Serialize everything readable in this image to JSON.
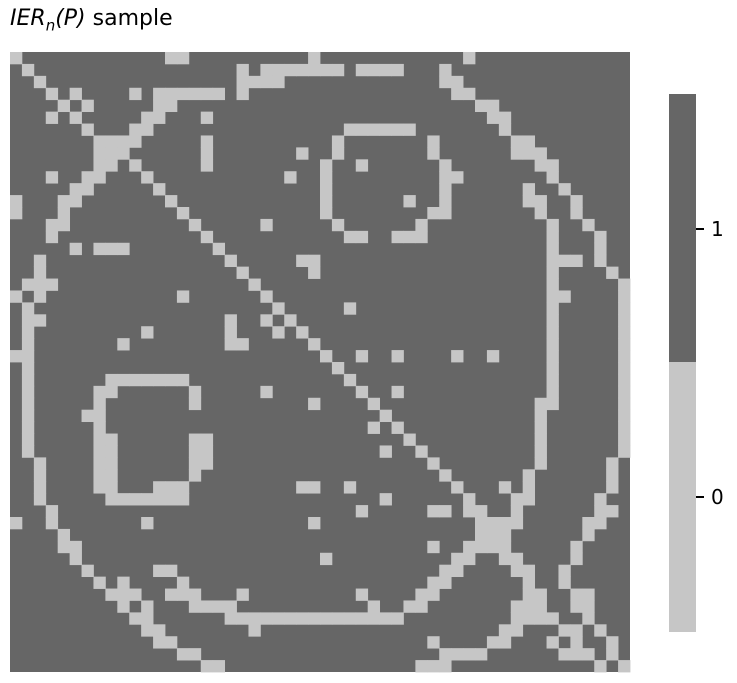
{
  "title": {
    "prefix": "IER",
    "subscript": "n",
    "suffix": "(P) sample"
  },
  "colors": {
    "one": "#666666",
    "zero": "#c6c6c6"
  },
  "chart_data": {
    "type": "heatmap",
    "title": "IER_n(P) sample",
    "size": 52,
    "values_rule": "1 everywhere except listed zero cells",
    "zero_cells_rc": [
      [
        0,
        0
      ],
      [
        0,
        13
      ],
      [
        0,
        14
      ],
      [
        0,
        25
      ],
      [
        0,
        38
      ],
      [
        1,
        1
      ],
      [
        1,
        19
      ],
      [
        1,
        21
      ],
      [
        1,
        22
      ],
      [
        1,
        23
      ],
      [
        1,
        24
      ],
      [
        1,
        25
      ],
      [
        1,
        26
      ],
      [
        1,
        27
      ],
      [
        1,
        29
      ],
      [
        1,
        30
      ],
      [
        1,
        31
      ],
      [
        1,
        32
      ],
      [
        1,
        36
      ],
      [
        2,
        2
      ],
      [
        2,
        19
      ],
      [
        2,
        20
      ],
      [
        2,
        21
      ],
      [
        2,
        22
      ],
      [
        2,
        36
      ],
      [
        2,
        37
      ],
      [
        3,
        3
      ],
      [
        3,
        5
      ],
      [
        3,
        10
      ],
      [
        3,
        12
      ],
      [
        3,
        13
      ],
      [
        3,
        14
      ],
      [
        3,
        15
      ],
      [
        3,
        16
      ],
      [
        3,
        17
      ],
      [
        3,
        19
      ],
      [
        3,
        37
      ],
      [
        3,
        38
      ],
      [
        4,
        4
      ],
      [
        4,
        6
      ],
      [
        4,
        12
      ],
      [
        4,
        13
      ],
      [
        4,
        39
      ],
      [
        4,
        40
      ],
      [
        5,
        3
      ],
      [
        5,
        5
      ],
      [
        5,
        11
      ],
      [
        5,
        12
      ],
      [
        5,
        16
      ],
      [
        5,
        40
      ],
      [
        5,
        41
      ],
      [
        6,
        6
      ],
      [
        6,
        10
      ],
      [
        6,
        11
      ],
      [
        6,
        28
      ],
      [
        6,
        29
      ],
      [
        6,
        30
      ],
      [
        6,
        31
      ],
      [
        6,
        32
      ],
      [
        6,
        33
      ],
      [
        6,
        41
      ],
      [
        7,
        7
      ],
      [
        7,
        8
      ],
      [
        7,
        9
      ],
      [
        7,
        10
      ],
      [
        7,
        16
      ],
      [
        7,
        27
      ],
      [
        7,
        35
      ],
      [
        7,
        42
      ],
      [
        7,
        43
      ],
      [
        8,
        7
      ],
      [
        8,
        8
      ],
      [
        8,
        9
      ],
      [
        8,
        16
      ],
      [
        8,
        24
      ],
      [
        8,
        27
      ],
      [
        8,
        35
      ],
      [
        8,
        42
      ],
      [
        8,
        43
      ],
      [
        8,
        44
      ],
      [
        9,
        7
      ],
      [
        9,
        8
      ],
      [
        9,
        10
      ],
      [
        9,
        16
      ],
      [
        9,
        26
      ],
      [
        9,
        29
      ],
      [
        9,
        36
      ],
      [
        9,
        44
      ],
      [
        9,
        45
      ],
      [
        10,
        3
      ],
      [
        10,
        6
      ],
      [
        10,
        7
      ],
      [
        10,
        11
      ],
      [
        10,
        23
      ],
      [
        10,
        26
      ],
      [
        10,
        36
      ],
      [
        10,
        37
      ],
      [
        10,
        45
      ],
      [
        11,
        5
      ],
      [
        11,
        6
      ],
      [
        11,
        12
      ],
      [
        11,
        26
      ],
      [
        11,
        36
      ],
      [
        11,
        43
      ],
      [
        11,
        46
      ],
      [
        12,
        0
      ],
      [
        12,
        4
      ],
      [
        12,
        5
      ],
      [
        12,
        13
      ],
      [
        12,
        26
      ],
      [
        12,
        33
      ],
      [
        12,
        36
      ],
      [
        12,
        43
      ],
      [
        12,
        44
      ],
      [
        12,
        47
      ],
      [
        13,
        0
      ],
      [
        13,
        4
      ],
      [
        13,
        14
      ],
      [
        13,
        26
      ],
      [
        13,
        35
      ],
      [
        13,
        36
      ],
      [
        13,
        44
      ],
      [
        13,
        47
      ],
      [
        14,
        3
      ],
      [
        14,
        4
      ],
      [
        14,
        15
      ],
      [
        14,
        21
      ],
      [
        14,
        27
      ],
      [
        14,
        34
      ],
      [
        14,
        45
      ],
      [
        14,
        48
      ],
      [
        15,
        3
      ],
      [
        15,
        16
      ],
      [
        15,
        28
      ],
      [
        15,
        29
      ],
      [
        15,
        32
      ],
      [
        15,
        33
      ],
      [
        15,
        34
      ],
      [
        15,
        45
      ],
      [
        15,
        49
      ],
      [
        16,
        5
      ],
      [
        16,
        7
      ],
      [
        16,
        8
      ],
      [
        16,
        9
      ],
      [
        16,
        17
      ],
      [
        16,
        45
      ],
      [
        16,
        49
      ],
      [
        17,
        2
      ],
      [
        17,
        18
      ],
      [
        17,
        24
      ],
      [
        17,
        25
      ],
      [
        17,
        45
      ],
      [
        17,
        46
      ],
      [
        17,
        47
      ],
      [
        17,
        49
      ],
      [
        18,
        2
      ],
      [
        18,
        19
      ],
      [
        18,
        25
      ],
      [
        18,
        45
      ],
      [
        18,
        50
      ],
      [
        19,
        1
      ],
      [
        19,
        2
      ],
      [
        19,
        3
      ],
      [
        19,
        20
      ],
      [
        19,
        45
      ],
      [
        19,
        51
      ],
      [
        20,
        0
      ],
      [
        20,
        2
      ],
      [
        20,
        14
      ],
      [
        20,
        21
      ],
      [
        20,
        45
      ],
      [
        20,
        46
      ],
      [
        20,
        51
      ],
      [
        21,
        1
      ],
      [
        21,
        22
      ],
      [
        21,
        28
      ],
      [
        21,
        45
      ],
      [
        21,
        51
      ],
      [
        22,
        1
      ],
      [
        22,
        2
      ],
      [
        22,
        18
      ],
      [
        22,
        21
      ],
      [
        22,
        23
      ],
      [
        22,
        45
      ],
      [
        22,
        51
      ],
      [
        23,
        1
      ],
      [
        23,
        11
      ],
      [
        23,
        18
      ],
      [
        23,
        22
      ],
      [
        23,
        24
      ],
      [
        23,
        45
      ],
      [
        23,
        51
      ],
      [
        24,
        1
      ],
      [
        24,
        9
      ],
      [
        24,
        18
      ],
      [
        24,
        19
      ],
      [
        24,
        25
      ],
      [
        24,
        45
      ],
      [
        24,
        51
      ],
      [
        25,
        0
      ],
      [
        25,
        1
      ],
      [
        25,
        26
      ],
      [
        25,
        29
      ],
      [
        25,
        32
      ],
      [
        25,
        37
      ],
      [
        25,
        40
      ],
      [
        25,
        45
      ],
      [
        25,
        51
      ],
      [
        26,
        1
      ],
      [
        26,
        27
      ],
      [
        26,
        45
      ],
      [
        26,
        51
      ],
      [
        27,
        1
      ],
      [
        27,
        8
      ],
      [
        27,
        9
      ],
      [
        27,
        10
      ],
      [
        27,
        11
      ],
      [
        27,
        12
      ],
      [
        27,
        13
      ],
      [
        27,
        14
      ],
      [
        27,
        28
      ],
      [
        27,
        45
      ],
      [
        27,
        51
      ],
      [
        28,
        1
      ],
      [
        28,
        7
      ],
      [
        28,
        8
      ],
      [
        28,
        15
      ],
      [
        28,
        21
      ],
      [
        28,
        29
      ],
      [
        28,
        32
      ],
      [
        28,
        45
      ],
      [
        28,
        51
      ],
      [
        29,
        1
      ],
      [
        29,
        7
      ],
      [
        29,
        15
      ],
      [
        29,
        25
      ],
      [
        29,
        30
      ],
      [
        29,
        44
      ],
      [
        29,
        45
      ],
      [
        29,
        51
      ],
      [
        30,
        1
      ],
      [
        30,
        6
      ],
      [
        30,
        7
      ],
      [
        30,
        31
      ],
      [
        30,
        44
      ],
      [
        30,
        51
      ],
      [
        31,
        1
      ],
      [
        31,
        7
      ],
      [
        31,
        30
      ],
      [
        31,
        32
      ],
      [
        31,
        44
      ],
      [
        31,
        51
      ],
      [
        32,
        1
      ],
      [
        32,
        7
      ],
      [
        32,
        8
      ],
      [
        32,
        15
      ],
      [
        32,
        16
      ],
      [
        32,
        33
      ],
      [
        32,
        44
      ],
      [
        32,
        51
      ],
      [
        33,
        1
      ],
      [
        33,
        7
      ],
      [
        33,
        8
      ],
      [
        33,
        15
      ],
      [
        33,
        16
      ],
      [
        33,
        31
      ],
      [
        33,
        34
      ],
      [
        33,
        44
      ],
      [
        33,
        51
      ],
      [
        34,
        2
      ],
      [
        34,
        7
      ],
      [
        34,
        8
      ],
      [
        34,
        15
      ],
      [
        34,
        16
      ],
      [
        34,
        35
      ],
      [
        34,
        44
      ],
      [
        34,
        50
      ],
      [
        35,
        2
      ],
      [
        35,
        7
      ],
      [
        35,
        8
      ],
      [
        35,
        15
      ],
      [
        35,
        36
      ],
      [
        35,
        43
      ],
      [
        35,
        50
      ],
      [
        36,
        2
      ],
      [
        36,
        7
      ],
      [
        36,
        8
      ],
      [
        36,
        12
      ],
      [
        36,
        13
      ],
      [
        36,
        14
      ],
      [
        36,
        24
      ],
      [
        36,
        25
      ],
      [
        36,
        28
      ],
      [
        36,
        37
      ],
      [
        36,
        41
      ],
      [
        36,
        43
      ],
      [
        36,
        50
      ],
      [
        37,
        2
      ],
      [
        37,
        8
      ],
      [
        37,
        9
      ],
      [
        37,
        10
      ],
      [
        37,
        11
      ],
      [
        37,
        12
      ],
      [
        37,
        13
      ],
      [
        37,
        14
      ],
      [
        37,
        31
      ],
      [
        37,
        38
      ],
      [
        37,
        42
      ],
      [
        37,
        43
      ],
      [
        37,
        49
      ],
      [
        38,
        3
      ],
      [
        38,
        29
      ],
      [
        38,
        35
      ],
      [
        38,
        36
      ],
      [
        38,
        38
      ],
      [
        38,
        39
      ],
      [
        38,
        42
      ],
      [
        38,
        49
      ],
      [
        38,
        50
      ],
      [
        39,
        0
      ],
      [
        39,
        3
      ],
      [
        39,
        11
      ],
      [
        39,
        25
      ],
      [
        39,
        39
      ],
      [
        39,
        40
      ],
      [
        39,
        41
      ],
      [
        39,
        42
      ],
      [
        39,
        48
      ],
      [
        39,
        49
      ],
      [
        40,
        4
      ],
      [
        40,
        39
      ],
      [
        40,
        40
      ],
      [
        40,
        41
      ],
      [
        40,
        48
      ],
      [
        41,
        4
      ],
      [
        41,
        5
      ],
      [
        41,
        35
      ],
      [
        41,
        38
      ],
      [
        41,
        39
      ],
      [
        41,
        40
      ],
      [
        41,
        41
      ],
      [
        41,
        47
      ],
      [
        42,
        5
      ],
      [
        42,
        26
      ],
      [
        42,
        37
      ],
      [
        42,
        38
      ],
      [
        42,
        41
      ],
      [
        42,
        42
      ],
      [
        42,
        47
      ],
      [
        43,
        6
      ],
      [
        43,
        12
      ],
      [
        43,
        13
      ],
      [
        43,
        36
      ],
      [
        43,
        37
      ],
      [
        43,
        42
      ],
      [
        43,
        43
      ],
      [
        43,
        46
      ],
      [
        44,
        7
      ],
      [
        44,
        9
      ],
      [
        44,
        14
      ],
      [
        44,
        35
      ],
      [
        44,
        36
      ],
      [
        44,
        43
      ],
      [
        44,
        46
      ],
      [
        45,
        8
      ],
      [
        45,
        9
      ],
      [
        45,
        10
      ],
      [
        45,
        13
      ],
      [
        45,
        14
      ],
      [
        45,
        15
      ],
      [
        45,
        19
      ],
      [
        45,
        29
      ],
      [
        45,
        34
      ],
      [
        45,
        35
      ],
      [
        45,
        43
      ],
      [
        45,
        44
      ],
      [
        45,
        47
      ],
      [
        45,
        48
      ],
      [
        46,
        9
      ],
      [
        46,
        11
      ],
      [
        46,
        15
      ],
      [
        46,
        16
      ],
      [
        46,
        17
      ],
      [
        46,
        18
      ],
      [
        46,
        30
      ],
      [
        46,
        33
      ],
      [
        46,
        34
      ],
      [
        46,
        42
      ],
      [
        46,
        43
      ],
      [
        46,
        44
      ],
      [
        46,
        47
      ],
      [
        46,
        48
      ],
      [
        47,
        10
      ],
      [
        47,
        11
      ],
      [
        47,
        18
      ],
      [
        47,
        19
      ],
      [
        47,
        20
      ],
      [
        47,
        21
      ],
      [
        47,
        22
      ],
      [
        47,
        23
      ],
      [
        47,
        24
      ],
      [
        47,
        25
      ],
      [
        47,
        26
      ],
      [
        47,
        27
      ],
      [
        47,
        28
      ],
      [
        47,
        29
      ],
      [
        47,
        30
      ],
      [
        47,
        31
      ],
      [
        47,
        32
      ],
      [
        47,
        42
      ],
      [
        47,
        43
      ],
      [
        47,
        44
      ],
      [
        47,
        45
      ],
      [
        47,
        48
      ],
      [
        48,
        11
      ],
      [
        48,
        12
      ],
      [
        48,
        20
      ],
      [
        48,
        41
      ],
      [
        48,
        42
      ],
      [
        48,
        46
      ],
      [
        48,
        47
      ],
      [
        48,
        49
      ],
      [
        49,
        12
      ],
      [
        49,
        13
      ],
      [
        49,
        35
      ],
      [
        49,
        40
      ],
      [
        49,
        41
      ],
      [
        49,
        45
      ],
      [
        49,
        47
      ],
      [
        49,
        50
      ],
      [
        50,
        14
      ],
      [
        50,
        15
      ],
      [
        50,
        36
      ],
      [
        50,
        37
      ],
      [
        50,
        38
      ],
      [
        50,
        39
      ],
      [
        50,
        46
      ],
      [
        50,
        47
      ],
      [
        50,
        48
      ],
      [
        50,
        50
      ],
      [
        51,
        16
      ],
      [
        51,
        17
      ],
      [
        51,
        34
      ],
      [
        51,
        35
      ],
      [
        51,
        36
      ],
      [
        51,
        49
      ],
      [
        51,
        51
      ]
    ],
    "colorbar": {
      "ticks": [
        "0",
        "1"
      ],
      "range": [
        0,
        1
      ]
    }
  }
}
